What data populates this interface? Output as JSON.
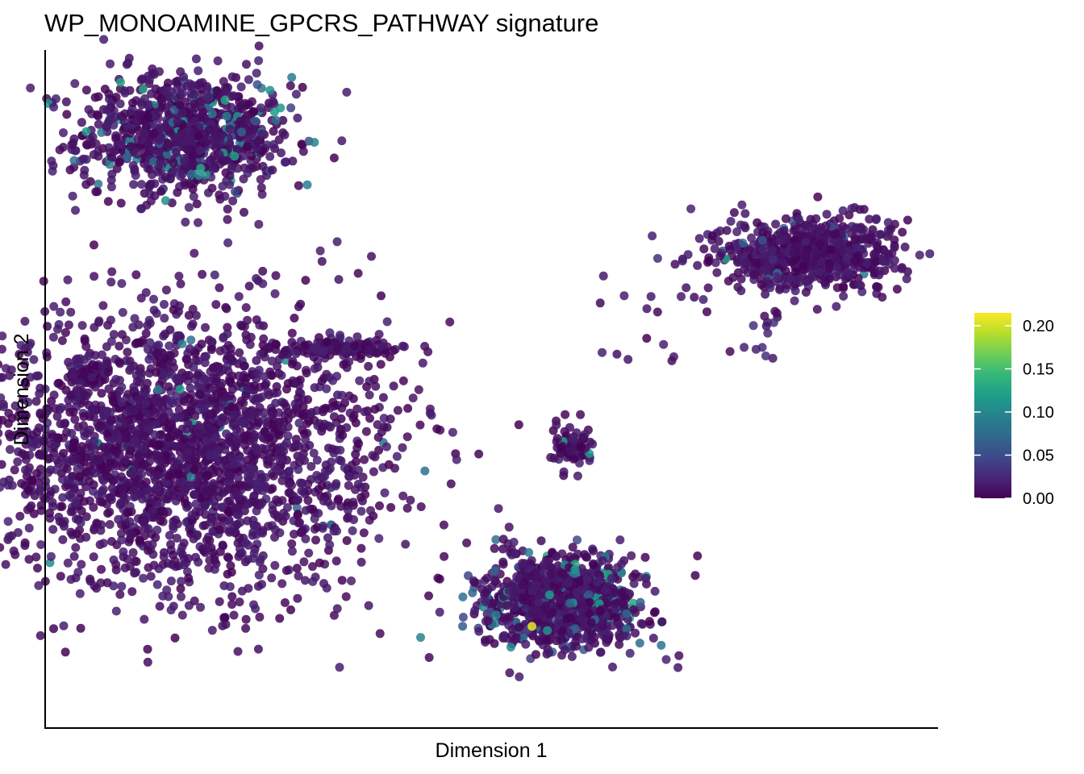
{
  "chart_data": {
    "type": "scatter",
    "title": "WP_MONOAMINE_GPCRS_PATHWAY signature",
    "xlabel": "Dimension 1",
    "ylabel": "Dimension 2",
    "xticks": "none",
    "yticks": "none",
    "grid": false,
    "color_scale": {
      "name": "viridis",
      "range": [
        0,
        0.215
      ],
      "ticks": [
        "0.00",
        "0.05",
        "0.10",
        "0.15",
        "0.20"
      ],
      "colors": [
        "#440154",
        "#482878",
        "#3e4989",
        "#31688e",
        "#26828e",
        "#1f9e89",
        "#35b779",
        "#6ece58",
        "#b5de2b",
        "#fde725"
      ],
      "legend_position": "right"
    },
    "clusters": [
      {
        "x": [
          -6.2,
          -5.8
        ],
        "y": [
          8.2,
          10.8
        ],
        "cx": -6.0,
        "cy": 9.6,
        "sx": 1.0,
        "sy": 0.75,
        "n": 900,
        "high_fraction": 0.1
      },
      {
        "x": [
          -7.4,
          -3.8
        ],
        "y": [
          -0.4,
          5.6
        ],
        "cx": -6.0,
        "cy": 2.2,
        "sx": 1.9,
        "sy": 1.6,
        "n": 2400,
        "high_fraction": 0.01
      },
      {
        "x": [
          -7.4,
          -7.0
        ],
        "y": [
          3.8,
          4.3
        ],
        "cx": -7.8,
        "cy": 4.0,
        "sx": 0.25,
        "sy": 0.15,
        "n": 60,
        "high_fraction": 0.0
      },
      {
        "x": [
          -3.5,
          -2.5
        ],
        "y": [
          4.4,
          4.7
        ],
        "cx": -3.1,
        "cy": 4.55,
        "sx": 0.55,
        "sy": 0.08,
        "n": 120,
        "high_fraction": 0.0
      },
      {
        "x": [
          4.6,
          6.6
        ],
        "y": [
          5.9,
          7.6
        ],
        "cx": 5.6,
        "cy": 6.8,
        "sx": 0.85,
        "sy": 0.45,
        "n": 600,
        "high_fraction": 0.03
      },
      {
        "x": [
          0.9,
          1.5
        ],
        "y": [
          2.0,
          2.6
        ],
        "cx": 1.2,
        "cy": 2.2,
        "sx": 0.18,
        "sy": 0.25,
        "n": 80,
        "high_fraction": 0.02
      },
      {
        "x": [
          0.0,
          2.8
        ],
        "y": [
          -2.6,
          -0.6
        ],
        "cx": 1.0,
        "cy": -1.4,
        "sx": 0.8,
        "sy": 0.55,
        "n": 900,
        "high_fraction": 0.12
      }
    ],
    "highlight_point": {
      "x": 0.45,
      "y": -2.0,
      "value": 0.21
    }
  }
}
